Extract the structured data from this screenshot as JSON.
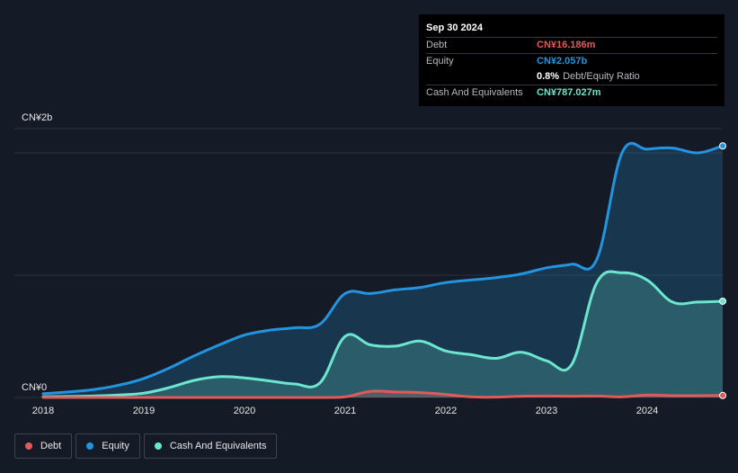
{
  "tooltip": {
    "date": "Sep 30 2024",
    "debt_label": "Debt",
    "debt_value": "CN¥16.186m",
    "equity_label": "Equity",
    "equity_value": "CN¥2.057b",
    "ratio_value": "0.8%",
    "ratio_label": "Debt/Equity Ratio",
    "cash_label": "Cash And Equivalents",
    "cash_value": "CN¥787.027m"
  },
  "legend": [
    {
      "label": "Debt",
      "color": "#e05a5a"
    },
    {
      "label": "Equity",
      "color": "#2394df"
    },
    {
      "label": "Cash And Equivalents",
      "color": "#6ce6cf"
    }
  ],
  "chart_data": {
    "type": "area",
    "title": "",
    "xlabel": "",
    "ylabel": "",
    "ylim": [
      0,
      2000
    ],
    "y_unit": "CN¥ millions",
    "y_tick_labels": [
      "CN¥0",
      "CN¥2b"
    ],
    "x_tick_labels": [
      "2018",
      "2019",
      "2020",
      "2021",
      "2022",
      "2023",
      "2024"
    ],
    "x_ticks": [
      2018,
      2019,
      2020,
      2021,
      2022,
      2023,
      2024
    ],
    "xlim": [
      2018,
      2024.75
    ],
    "series": [
      {
        "name": "Equity",
        "color": "#2394df",
        "x": [
          2018,
          2018.25,
          2018.5,
          2018.75,
          2019,
          2019.25,
          2019.5,
          2019.75,
          2020,
          2020.25,
          2020.5,
          2020.75,
          2021,
          2021.25,
          2021.5,
          2021.75,
          2022,
          2022.25,
          2022.5,
          2022.75,
          2023,
          2023.25,
          2023.5,
          2023.75,
          2024,
          2024.25,
          2024.5,
          2024.75
        ],
        "values": [
          30,
          45,
          65,
          100,
          155,
          240,
          340,
          430,
          510,
          550,
          570,
          600,
          850,
          850,
          880,
          900,
          940,
          960,
          980,
          1010,
          1060,
          1090,
          1130,
          2000,
          2030,
          2040,
          2000,
          2057
        ]
      },
      {
        "name": "Cash And Equivalents",
        "color": "#6ce6cf",
        "x": [
          2018,
          2018.25,
          2018.5,
          2018.75,
          2019,
          2019.25,
          2019.5,
          2019.75,
          2020,
          2020.25,
          2020.5,
          2020.75,
          2021,
          2021.25,
          2021.5,
          2021.75,
          2022,
          2022.25,
          2022.5,
          2022.75,
          2023,
          2023.25,
          2023.5,
          2023.75,
          2024,
          2024.25,
          2024.5,
          2024.75
        ],
        "values": [
          5,
          8,
          12,
          20,
          35,
          80,
          140,
          170,
          160,
          135,
          110,
          120,
          500,
          430,
          420,
          460,
          380,
          350,
          320,
          370,
          300,
          270,
          940,
          1020,
          960,
          780,
          780,
          787
        ]
      },
      {
        "name": "Debt",
        "color": "#e05a5a",
        "x": [
          2018,
          2018.25,
          2018.5,
          2018.75,
          2019,
          2019.25,
          2019.5,
          2019.75,
          2020,
          2020.25,
          2020.5,
          2020.75,
          2021,
          2021.25,
          2021.5,
          2021.75,
          2022,
          2022.25,
          2022.5,
          2022.75,
          2023,
          2023.25,
          2023.5,
          2023.75,
          2024,
          2024.25,
          2024.5,
          2024.75
        ],
        "values": [
          0,
          0,
          0,
          0,
          0,
          0,
          0,
          0,
          0,
          0,
          0,
          0,
          5,
          50,
          45,
          40,
          25,
          5,
          3,
          10,
          12,
          10,
          12,
          5,
          20,
          15,
          15,
          16.186
        ]
      }
    ]
  }
}
